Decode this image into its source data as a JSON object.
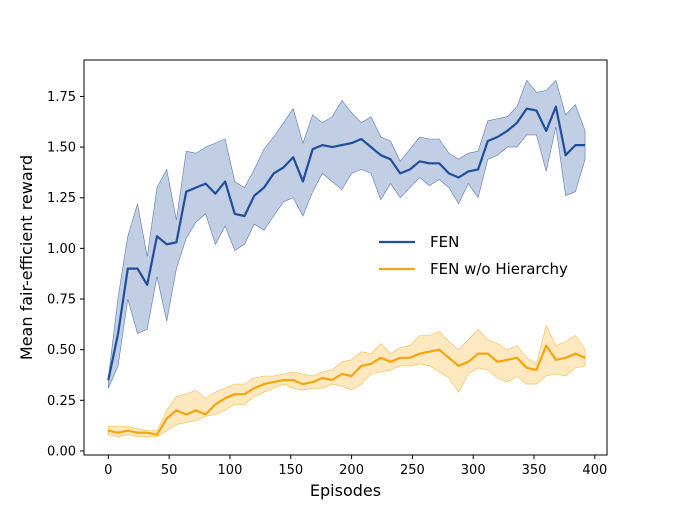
{
  "chart_data": {
    "type": "line",
    "xlabel": "Episodes",
    "ylabel": "Mean fair-efficient reward",
    "xlim": [
      -20,
      410
    ],
    "ylim": [
      -0.02,
      1.93
    ],
    "xticks": [
      0,
      50,
      100,
      150,
      200,
      250,
      300,
      350,
      400
    ],
    "yticks": [
      0.0,
      0.25,
      0.5,
      0.75,
      1.0,
      1.25,
      1.5,
      1.75
    ],
    "ytick_labels": [
      "0.00",
      "0.25",
      "0.50",
      "0.75",
      "1.00",
      "1.25",
      "1.50",
      "1.75"
    ],
    "legend_position": "center-right",
    "grid": false,
    "x": [
      0,
      8,
      16,
      24,
      32,
      40,
      48,
      56,
      64,
      72,
      80,
      88,
      96,
      104,
      112,
      120,
      128,
      136,
      144,
      152,
      160,
      168,
      176,
      184,
      192,
      200,
      208,
      216,
      224,
      232,
      240,
      248,
      256,
      264,
      272,
      280,
      288,
      296,
      304,
      312,
      320,
      328,
      336,
      344,
      352,
      360,
      368,
      376,
      384,
      392
    ],
    "series": [
      {
        "name": "FEN",
        "color": "#1f4e9c",
        "fill_color": "#1f4e9c",
        "values": [
          0.35,
          0.58,
          0.9,
          0.9,
          0.82,
          1.06,
          1.02,
          1.03,
          1.28,
          1.3,
          1.32,
          1.27,
          1.33,
          1.17,
          1.16,
          1.26,
          1.3,
          1.37,
          1.4,
          1.45,
          1.33,
          1.49,
          1.51,
          1.5,
          1.51,
          1.52,
          1.54,
          1.5,
          1.46,
          1.44,
          1.37,
          1.39,
          1.43,
          1.42,
          1.42,
          1.37,
          1.35,
          1.38,
          1.39,
          1.53,
          1.55,
          1.58,
          1.62,
          1.69,
          1.68,
          1.58,
          1.7,
          1.46,
          1.51,
          1.51
        ],
        "lower": [
          0.31,
          0.42,
          0.75,
          0.58,
          0.6,
          0.86,
          0.64,
          0.9,
          1.05,
          1.13,
          1.17,
          1.02,
          1.11,
          0.99,
          1.02,
          1.12,
          1.09,
          1.16,
          1.23,
          1.25,
          1.16,
          1.28,
          1.37,
          1.33,
          1.29,
          1.37,
          1.39,
          1.37,
          1.24,
          1.32,
          1.25,
          1.3,
          1.35,
          1.31,
          1.34,
          1.3,
          1.22,
          1.32,
          1.25,
          1.44,
          1.46,
          1.5,
          1.5,
          1.56,
          1.56,
          1.38,
          1.6,
          1.26,
          1.28,
          1.44
        ],
        "upper": [
          0.36,
          0.76,
          1.06,
          1.22,
          0.96,
          1.3,
          1.39,
          1.14,
          1.48,
          1.47,
          1.5,
          1.52,
          1.54,
          1.33,
          1.3,
          1.39,
          1.49,
          1.55,
          1.62,
          1.69,
          1.52,
          1.66,
          1.62,
          1.65,
          1.73,
          1.67,
          1.62,
          1.65,
          1.55,
          1.53,
          1.43,
          1.49,
          1.55,
          1.54,
          1.54,
          1.47,
          1.44,
          1.47,
          1.48,
          1.63,
          1.64,
          1.65,
          1.7,
          1.83,
          1.77,
          1.78,
          1.83,
          1.66,
          1.71,
          1.58
        ]
      },
      {
        "name": "FEN w/o Hierarchy",
        "color": "#f5a40c",
        "fill_color": "#fbc86a",
        "values": [
          0.1,
          0.09,
          0.1,
          0.09,
          0.09,
          0.08,
          0.16,
          0.2,
          0.18,
          0.2,
          0.18,
          0.23,
          0.26,
          0.28,
          0.28,
          0.31,
          0.33,
          0.34,
          0.35,
          0.35,
          0.33,
          0.34,
          0.36,
          0.35,
          0.38,
          0.37,
          0.42,
          0.43,
          0.46,
          0.44,
          0.46,
          0.46,
          0.48,
          0.49,
          0.5,
          0.46,
          0.42,
          0.44,
          0.48,
          0.48,
          0.44,
          0.45,
          0.46,
          0.41,
          0.4,
          0.52,
          0.45,
          0.46,
          0.48,
          0.46
        ],
        "lower": [
          0.08,
          0.07,
          0.08,
          0.07,
          0.07,
          0.07,
          0.1,
          0.13,
          0.14,
          0.15,
          0.17,
          0.18,
          0.2,
          0.23,
          0.23,
          0.27,
          0.29,
          0.31,
          0.33,
          0.31,
          0.3,
          0.31,
          0.31,
          0.33,
          0.32,
          0.3,
          0.33,
          0.38,
          0.39,
          0.4,
          0.42,
          0.42,
          0.43,
          0.42,
          0.39,
          0.36,
          0.29,
          0.38,
          0.41,
          0.4,
          0.36,
          0.34,
          0.37,
          0.33,
          0.33,
          0.37,
          0.38,
          0.37,
          0.41,
          0.42
        ],
        "upper": [
          0.12,
          0.12,
          0.12,
          0.11,
          0.1,
          0.1,
          0.2,
          0.27,
          0.28,
          0.3,
          0.26,
          0.29,
          0.31,
          0.33,
          0.33,
          0.36,
          0.37,
          0.37,
          0.38,
          0.39,
          0.38,
          0.37,
          0.39,
          0.4,
          0.44,
          0.45,
          0.49,
          0.48,
          0.53,
          0.48,
          0.51,
          0.52,
          0.57,
          0.57,
          0.59,
          0.54,
          0.5,
          0.55,
          0.6,
          0.55,
          0.53,
          0.5,
          0.52,
          0.46,
          0.43,
          0.62,
          0.52,
          0.54,
          0.57,
          0.5
        ]
      }
    ]
  }
}
